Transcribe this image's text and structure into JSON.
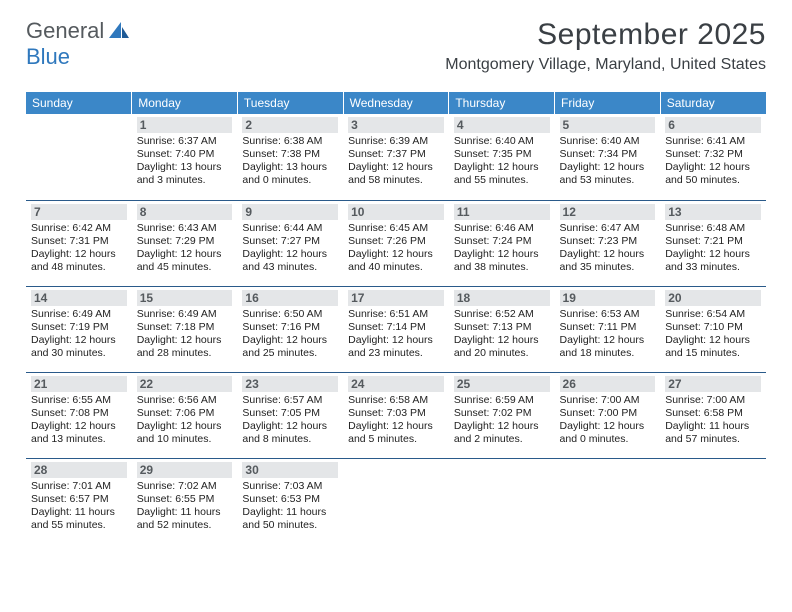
{
  "logo": {
    "text1": "General",
    "text2": "Blue"
  },
  "title": "September 2025",
  "location": "Montgomery Village, Maryland, United States",
  "colors": {
    "header_bg": "#3b87c8",
    "header_text": "#ffffff",
    "daynum_bg": "#e4e6e8",
    "daynum_text": "#555a5e",
    "row_border": "#2a5a8a",
    "logo_gray": "#555a5e",
    "logo_blue": "#2f78bd"
  },
  "weekdays": [
    "Sunday",
    "Monday",
    "Tuesday",
    "Wednesday",
    "Thursday",
    "Friday",
    "Saturday"
  ],
  "weeks": [
    [
      null,
      {
        "n": "1",
        "sr": "6:37 AM",
        "ss": "7:40 PM",
        "dl": "13 hours and 3 minutes."
      },
      {
        "n": "2",
        "sr": "6:38 AM",
        "ss": "7:38 PM",
        "dl": "13 hours and 0 minutes."
      },
      {
        "n": "3",
        "sr": "6:39 AM",
        "ss": "7:37 PM",
        "dl": "12 hours and 58 minutes."
      },
      {
        "n": "4",
        "sr": "6:40 AM",
        "ss": "7:35 PM",
        "dl": "12 hours and 55 minutes."
      },
      {
        "n": "5",
        "sr": "6:40 AM",
        "ss": "7:34 PM",
        "dl": "12 hours and 53 minutes."
      },
      {
        "n": "6",
        "sr": "6:41 AM",
        "ss": "7:32 PM",
        "dl": "12 hours and 50 minutes."
      }
    ],
    [
      {
        "n": "7",
        "sr": "6:42 AM",
        "ss": "7:31 PM",
        "dl": "12 hours and 48 minutes."
      },
      {
        "n": "8",
        "sr": "6:43 AM",
        "ss": "7:29 PM",
        "dl": "12 hours and 45 minutes."
      },
      {
        "n": "9",
        "sr": "6:44 AM",
        "ss": "7:27 PM",
        "dl": "12 hours and 43 minutes."
      },
      {
        "n": "10",
        "sr": "6:45 AM",
        "ss": "7:26 PM",
        "dl": "12 hours and 40 minutes."
      },
      {
        "n": "11",
        "sr": "6:46 AM",
        "ss": "7:24 PM",
        "dl": "12 hours and 38 minutes."
      },
      {
        "n": "12",
        "sr": "6:47 AM",
        "ss": "7:23 PM",
        "dl": "12 hours and 35 minutes."
      },
      {
        "n": "13",
        "sr": "6:48 AM",
        "ss": "7:21 PM",
        "dl": "12 hours and 33 minutes."
      }
    ],
    [
      {
        "n": "14",
        "sr": "6:49 AM",
        "ss": "7:19 PM",
        "dl": "12 hours and 30 minutes."
      },
      {
        "n": "15",
        "sr": "6:49 AM",
        "ss": "7:18 PM",
        "dl": "12 hours and 28 minutes."
      },
      {
        "n": "16",
        "sr": "6:50 AM",
        "ss": "7:16 PM",
        "dl": "12 hours and 25 minutes."
      },
      {
        "n": "17",
        "sr": "6:51 AM",
        "ss": "7:14 PM",
        "dl": "12 hours and 23 minutes."
      },
      {
        "n": "18",
        "sr": "6:52 AM",
        "ss": "7:13 PM",
        "dl": "12 hours and 20 minutes."
      },
      {
        "n": "19",
        "sr": "6:53 AM",
        "ss": "7:11 PM",
        "dl": "12 hours and 18 minutes."
      },
      {
        "n": "20",
        "sr": "6:54 AM",
        "ss": "7:10 PM",
        "dl": "12 hours and 15 minutes."
      }
    ],
    [
      {
        "n": "21",
        "sr": "6:55 AM",
        "ss": "7:08 PM",
        "dl": "12 hours and 13 minutes."
      },
      {
        "n": "22",
        "sr": "6:56 AM",
        "ss": "7:06 PM",
        "dl": "12 hours and 10 minutes."
      },
      {
        "n": "23",
        "sr": "6:57 AM",
        "ss": "7:05 PM",
        "dl": "12 hours and 8 minutes."
      },
      {
        "n": "24",
        "sr": "6:58 AM",
        "ss": "7:03 PM",
        "dl": "12 hours and 5 minutes."
      },
      {
        "n": "25",
        "sr": "6:59 AM",
        "ss": "7:02 PM",
        "dl": "12 hours and 2 minutes."
      },
      {
        "n": "26",
        "sr": "7:00 AM",
        "ss": "7:00 PM",
        "dl": "12 hours and 0 minutes."
      },
      {
        "n": "27",
        "sr": "7:00 AM",
        "ss": "6:58 PM",
        "dl": "11 hours and 57 minutes."
      }
    ],
    [
      {
        "n": "28",
        "sr": "7:01 AM",
        "ss": "6:57 PM",
        "dl": "11 hours and 55 minutes."
      },
      {
        "n": "29",
        "sr": "7:02 AM",
        "ss": "6:55 PM",
        "dl": "11 hours and 52 minutes."
      },
      {
        "n": "30",
        "sr": "7:03 AM",
        "ss": "6:53 PM",
        "dl": "11 hours and 50 minutes."
      },
      null,
      null,
      null,
      null
    ]
  ]
}
